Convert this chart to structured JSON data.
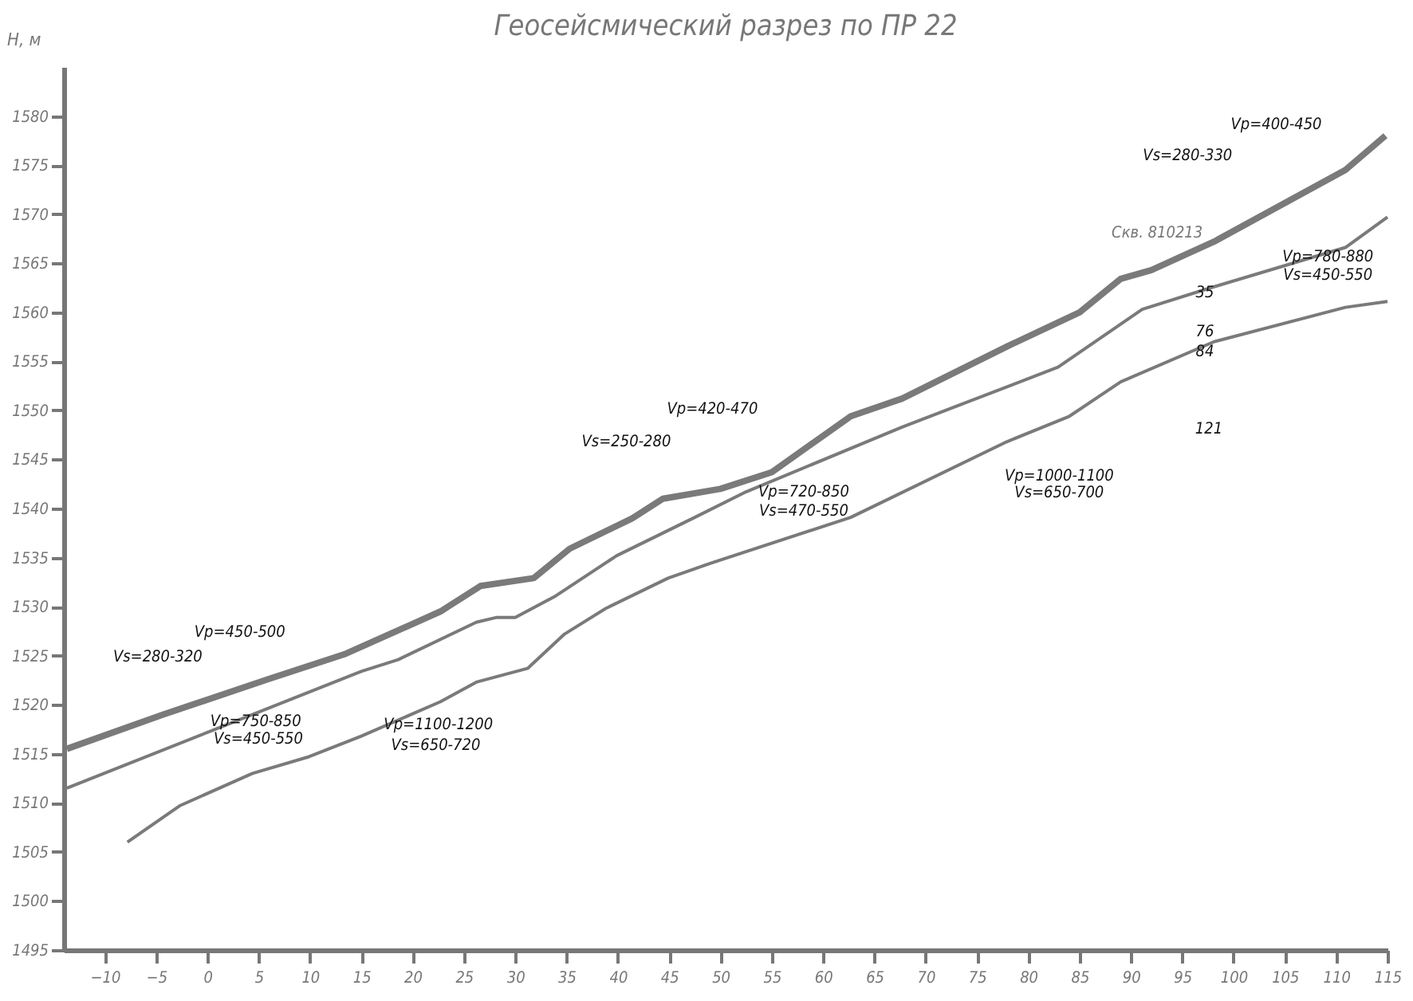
{
  "chart_data": {
    "type": "line",
    "title": "Геосейсмический разрез по ПР 22",
    "ylabel": "Н, м",
    "xlim": [
      -14,
      115
    ],
    "xticks": [
      -10,
      -5,
      0,
      5,
      10,
      15,
      20,
      25,
      30,
      35,
      40,
      45,
      50,
      55,
      60,
      65,
      70,
      75,
      80,
      85,
      90,
      95,
      100,
      105,
      110,
      115
    ],
    "ylim": [
      1495,
      1585
    ],
    "yticks": [
      1495,
      1500,
      1505,
      1510,
      1515,
      1520,
      1525,
      1530,
      1535,
      1540,
      1545,
      1550,
      1555,
      1560,
      1565,
      1570,
      1575,
      1580
    ],
    "grid": false,
    "marker": "none",
    "line_style": "solid",
    "series": [
      {
        "color": "#7a7a7a",
        "x": [
          -13.7,
          -4.3,
          5.9,
          13.5,
          22.7,
          26.6,
          31.8,
          35.3,
          41.4,
          44.4,
          50,
          55,
          62.7,
          67.7,
          77.9,
          85,
          89,
          92,
          98.1,
          110.9,
          114.8
        ],
        "values": [
          1515.5,
          1519,
          1522.6,
          1525.2,
          1529.5,
          1532.1,
          1532.9,
          1535.9,
          1539,
          1541,
          1542,
          1543.7,
          1549.4,
          1551.2,
          1556.5,
          1560,
          1563.4,
          1564.3,
          1567.2,
          1574.5,
          1578
        ]
      },
      {
        "color": "#7a7a7a",
        "x": [
          -13.7,
          15,
          18.6,
          26.2,
          28.2,
          30,
          33.8,
          39.9,
          47.5,
          52.5,
          67.7,
          82.9,
          91.1,
          98.1,
          110.9,
          115
        ],
        "values": [
          1511.5,
          1523.4,
          1524.6,
          1528.4,
          1528.9,
          1528.9,
          1531,
          1535.2,
          1539.1,
          1541.7,
          1548.3,
          1554.4,
          1560.3,
          1562.6,
          1566.6,
          1569.7
        ]
      },
      {
        "color": "#7a7a7a",
        "x": [
          -7.8,
          -2.7,
          4.4,
          9.9,
          15,
          22.7,
          26.2,
          31.2,
          34.8,
          38.8,
          44.9,
          49,
          62.7,
          77.9,
          84,
          89,
          98.1,
          110.9,
          115
        ],
        "values": [
          1506,
          1509.7,
          1513,
          1514.7,
          1516.8,
          1520.3,
          1522.3,
          1523.7,
          1527.2,
          1529.8,
          1532.9,
          1534.4,
          1539.1,
          1546.8,
          1549.4,
          1552.9,
          1557,
          1560.5,
          1561.1
        ]
      }
    ],
    "annotations": [
      "Vp=450-500",
      "Vs=280-320",
      "Vp=750-850",
      "Vs=450-550",
      "Vp=1100-1200",
      "Vs=650-720",
      "Vs=250-280",
      "Vp=420-470",
      "Vp=720-850",
      "Vs=470-550",
      "Vp=1000-1100",
      "Vs=650-700",
      "Vs=280-330",
      "Vp=400-450",
      "Vp=780-880",
      "Vs=450-550",
      "Скв. 810213",
      "35",
      "76",
      "84",
      "121"
    ]
  }
}
